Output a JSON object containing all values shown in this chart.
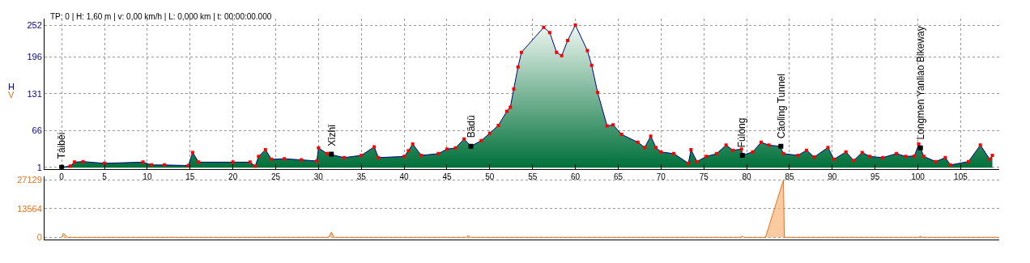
{
  "chart_data": [
    {
      "type": "area",
      "ylabel": "H",
      "subtitle": "TP: 0 | H: 1,60 m | v: 0,00 km/h | L: 0,000 km | t: 00:00:00.000",
      "xlim": [
        -2,
        109.5
      ],
      "ylim": [
        -2,
        264
      ],
      "xticks": [
        0,
        5,
        10,
        15,
        20,
        25,
        30,
        35,
        40,
        45,
        50,
        55,
        60,
        65,
        70,
        75,
        80,
        85,
        90,
        95,
        100,
        105
      ],
      "yticks": [
        1,
        66,
        131,
        196,
        252
      ],
      "grid": true,
      "marker": "square",
      "series": [
        {
          "color": "#ff0000",
          "x": [
            0,
            1,
            1.5,
            2.5,
            5,
            9.5,
            10.5,
            12,
            14.8,
            15.3,
            16,
            20,
            22,
            22.6,
            23,
            23.8,
            24.5,
            26,
            28,
            29.8,
            30,
            31,
            33,
            35,
            36.5,
            37,
            40,
            40.5,
            41,
            42,
            44,
            45,
            46,
            47,
            47.8,
            49,
            50,
            51,
            52,
            52.4,
            52.8,
            53.3,
            53.7,
            56.3,
            57,
            57.8,
            58.4,
            59.1,
            60,
            61.4,
            61.9,
            62.6,
            63.7,
            64.4,
            65.4,
            67.3,
            68.1,
            68.8,
            69.4,
            70,
            71.5,
            73.2,
            73.5,
            74.2,
            75.3,
            76.5,
            77.6,
            78.4,
            79.4,
            79.5,
            80.7,
            81.7,
            82.6,
            83.9,
            84.3,
            86,
            87,
            87.9,
            89.5,
            90.2,
            91.6,
            92.5,
            93.5,
            94.4,
            95.9,
            97.5,
            98.6,
            99.6,
            100.1,
            100.7,
            102.1,
            103.2,
            103.8,
            105.9,
            107.3,
            108.4,
            108.7
          ],
          "values": [
            1,
            3,
            10,
            11,
            8,
            10,
            5,
            5,
            4,
            27,
            10,
            10,
            10,
            3,
            20,
            32,
            15,
            16,
            14,
            12,
            35,
            25,
            18,
            22,
            37,
            18,
            20,
            30,
            42,
            22,
            25,
            33,
            35,
            51,
            38,
            48,
            61,
            75,
            100,
            107,
            139,
            178,
            204,
            248,
            239,
            204,
            198,
            225,
            252,
            207,
            181,
            133,
            74,
            76,
            59,
            45,
            36,
            56,
            36,
            28,
            25,
            8,
            32,
            11,
            20,
            25,
            40,
            31,
            33,
            22,
            28,
            45,
            40,
            38,
            25,
            22,
            31,
            19,
            36,
            15,
            28,
            13,
            27,
            20,
            18,
            25,
            20,
            21,
            42,
            20,
            11,
            18,
            5,
            11,
            40,
            15,
            22
          ]
        },
        {
          "type": "scatter",
          "color": "#000000",
          "x": [
            0,
            31.5,
            47.8,
            79.5,
            84,
            100.3
          ],
          "values": [
            1,
            24,
            38,
            22,
            38,
            35
          ]
        }
      ],
      "annotations": [
        {
          "text": "Táiběi",
          "x": 0,
          "y": 1
        },
        {
          "text": "Xīzhǐ",
          "x": 31.5,
          "y": 24
        },
        {
          "text": "Bādǔ",
          "x": 47.8,
          "y": 38
        },
        {
          "text": "Fúlóng",
          "x": 79.5,
          "y": 22
        },
        {
          "text": "Cǎolǐng Tunnel",
          "x": 84,
          "y": 38
        },
        {
          "text": "Longmen Yanliao Bikeway",
          "x": 100.3,
          "y": 35
        }
      ]
    },
    {
      "type": "area",
      "ylabel": "V",
      "xlim": [
        -2,
        109.5
      ],
      "ylim": [
        -1200,
        29000
      ],
      "yticks": [
        0,
        13564,
        27129
      ],
      "grid": "y",
      "tick_labels": "y",
      "series": [
        {
          "color": "#e8701a",
          "x": [
            0,
            0.2,
            0.7,
            31.2,
            31.5,
            31.8,
            47.3,
            47.5,
            47.7,
            79.3,
            79.5,
            79.7,
            82.2,
            84.3,
            84.4,
            100.1,
            100.3,
            100.5,
            109.4
          ],
          "values": [
            0,
            1900,
            0,
            0,
            2400,
            0,
            0,
            900,
            0,
            0,
            500,
            0,
            0,
            27129,
            0,
            0,
            500,
            0,
            0
          ]
        }
      ]
    }
  ]
}
